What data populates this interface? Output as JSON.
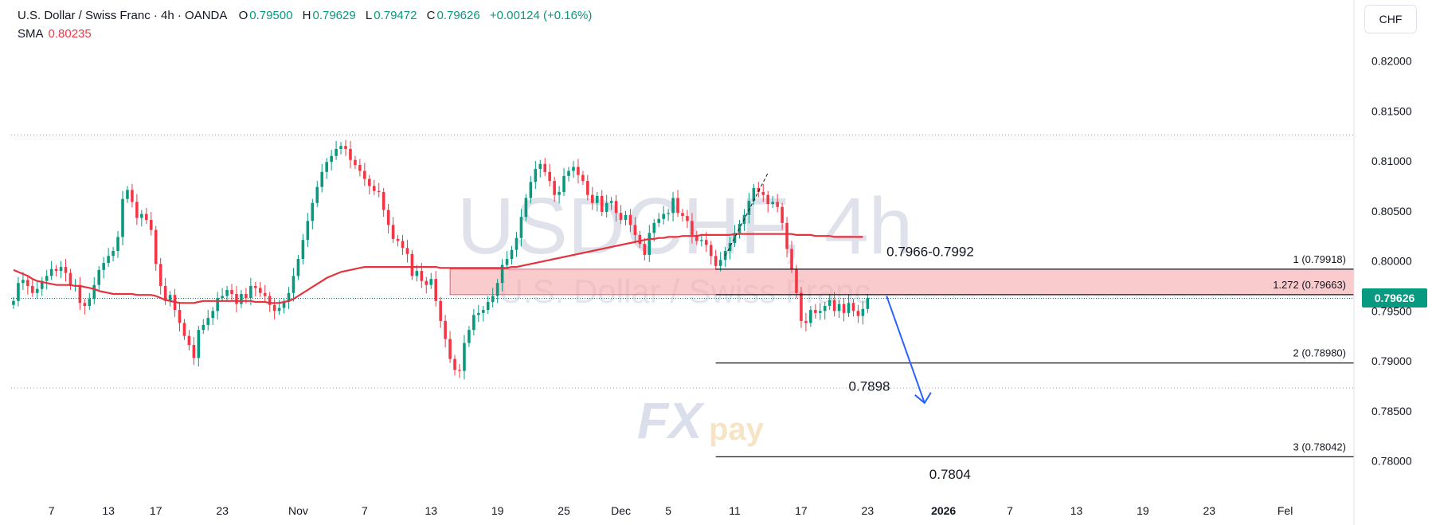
{
  "header": {
    "symbol": "U.S. Dollar / Swiss Franc · 4h · OANDA",
    "open_label": "O",
    "open": "0.79500",
    "high_label": "H",
    "high": "0.79629",
    "low_label": "L",
    "low": "0.79472",
    "close_label": "C",
    "close": "0.79626",
    "change": "+0.00124 (+0.16%)",
    "sma_label": "SMA",
    "sma_value": "0.80235",
    "currency": "CHF"
  },
  "watermark": {
    "ticker": "USDCHF, 4h",
    "name": "U.S. Dollar / Swiss Franc",
    "logo_text": "FXpay"
  },
  "last_price": "0.79626",
  "colors": {
    "up": "#089981",
    "down": "#f23645",
    "sma": "#e5323e",
    "zone": "#f7a8ac",
    "arrow": "#2962ff"
  },
  "chart_data": {
    "type": "line",
    "title": "U.S. Dollar / Swiss Franc · 4h · OANDA",
    "xlabel": "",
    "ylabel": "",
    "ylim": [
      0.7775,
      0.8245
    ],
    "y_ticks": [
      "0.82000",
      "0.81500",
      "0.81000",
      "0.80500",
      "0.80000",
      "0.79500",
      "0.79000",
      "0.78500",
      "0.78000"
    ],
    "y_tick_values": [
      0.82,
      0.815,
      0.81,
      0.805,
      0.8,
      0.795,
      0.79,
      0.785,
      0.78
    ],
    "x_ticks": [
      "7",
      "13",
      "17",
      "23",
      "Nov",
      "7",
      "13",
      "19",
      "25",
      "Dec",
      "5",
      "11",
      "17",
      "23",
      "2026",
      "7",
      "13",
      "19",
      "23",
      "Fel"
    ],
    "x_tick_index": [
      8,
      20,
      30,
      44,
      60,
      74,
      88,
      102,
      116,
      128,
      138,
      152,
      166,
      180,
      196,
      210,
      224,
      238,
      252,
      268
    ],
    "candles_x_range": [
      0,
      283
    ],
    "series": [
      {
        "name": "close",
        "values": [
          0.796,
          0.7978,
          0.7981,
          0.7975,
          0.7968,
          0.7972,
          0.798,
          0.7985,
          0.7992,
          0.799,
          0.7994,
          0.7988,
          0.7975,
          0.7976,
          0.7958,
          0.7955,
          0.7962,
          0.7976,
          0.7991,
          0.7998,
          0.8005,
          0.801,
          0.8024,
          0.8062,
          0.8071,
          0.8059,
          0.8043,
          0.8047,
          0.8041,
          0.8031,
          0.7997,
          0.7975,
          0.796,
          0.7966,
          0.7951,
          0.7938,
          0.7925,
          0.7916,
          0.7903,
          0.7931,
          0.7936,
          0.7943,
          0.795,
          0.7963,
          0.7965,
          0.7971,
          0.7967,
          0.7957,
          0.7967,
          0.7963,
          0.7975,
          0.7973,
          0.7968,
          0.7965,
          0.7956,
          0.795,
          0.7953,
          0.7959,
          0.7968,
          0.7985,
          0.8002,
          0.8021,
          0.804,
          0.8058,
          0.8074,
          0.8089,
          0.8099,
          0.8105,
          0.8112,
          0.8115,
          0.8112,
          0.8101,
          0.8096,
          0.809,
          0.8082,
          0.8075,
          0.807,
          0.8069,
          0.8051,
          0.8036,
          0.8022,
          0.802,
          0.8013,
          0.8007,
          0.7985,
          0.799,
          0.798,
          0.7976,
          0.7982,
          0.796,
          0.794,
          0.7922,
          0.7902,
          0.7891,
          0.789,
          0.7918,
          0.7931,
          0.7946,
          0.7948,
          0.7951,
          0.7959,
          0.7965,
          0.7978,
          0.7996,
          0.8002,
          0.8011,
          0.8023,
          0.8044,
          0.8063,
          0.8079,
          0.8092,
          0.8097,
          0.8089,
          0.808,
          0.8066,
          0.8069,
          0.8085,
          0.809,
          0.8094,
          0.8086,
          0.808,
          0.8066,
          0.8058,
          0.8065,
          0.8049,
          0.8058,
          0.806,
          0.8048,
          0.8041,
          0.8046,
          0.8036,
          0.8026,
          0.8017,
          0.8006,
          0.8028,
          0.8038,
          0.8042,
          0.8047,
          0.8048,
          0.8063,
          0.8048,
          0.8045,
          0.804,
          0.8026,
          0.802,
          0.8021,
          0.8016,
          0.8005,
          0.7995,
          0.8001,
          0.801,
          0.8018,
          0.8028,
          0.8037,
          0.8046,
          0.806,
          0.8073,
          0.8069,
          0.8066,
          0.8057,
          0.8059,
          0.8054,
          0.8038,
          0.8012,
          0.7992,
          0.7968,
          0.794,
          0.7938,
          0.7951,
          0.7948,
          0.795,
          0.7955,
          0.7961,
          0.795,
          0.7957,
          0.7948,
          0.7958,
          0.795,
          0.7945,
          0.7952,
          0.7963
        ],
        "sma": [
          0.7991,
          0.7989,
          0.7987,
          0.7985,
          0.7982,
          0.798,
          0.7979,
          0.7978,
          0.7977,
          0.7976,
          0.7976,
          0.7976,
          0.7976,
          0.7975,
          0.7975,
          0.7974,
          0.7973,
          0.7972,
          0.797,
          0.7969,
          0.7968,
          0.7967,
          0.7967,
          0.7967,
          0.7967,
          0.7967,
          0.7966,
          0.7966,
          0.7966,
          0.7966,
          0.7965,
          0.7963,
          0.7961,
          0.796,
          0.7959,
          0.7958,
          0.7958,
          0.7958,
          0.7958,
          0.7959,
          0.796,
          0.796,
          0.796,
          0.796,
          0.796,
          0.796,
          0.796,
          0.796,
          0.796,
          0.796,
          0.796,
          0.7959,
          0.7959,
          0.7959,
          0.7958,
          0.7958,
          0.7958,
          0.7959,
          0.796,
          0.7962,
          0.7965,
          0.7968,
          0.7971,
          0.7974,
          0.7977,
          0.798,
          0.7983,
          0.7985,
          0.7987,
          0.7989,
          0.799,
          0.7991,
          0.7992,
          0.7993,
          0.7994,
          0.7994,
          0.7994,
          0.7994,
          0.7994,
          0.7994,
          0.7994,
          0.7994,
          0.7994,
          0.7994,
          0.7994,
          0.7994,
          0.7994,
          0.7994,
          0.7994,
          0.7994,
          0.7993,
          0.7993,
          0.7993,
          0.7993,
          0.7993,
          0.7993,
          0.7993,
          0.7993,
          0.7993,
          0.7993,
          0.7993,
          0.7993,
          0.7993,
          0.7993,
          0.7993,
          0.7994,
          0.7994,
          0.7995,
          0.7996,
          0.7997,
          0.7998,
          0.7999,
          0.8,
          0.8001,
          0.8002,
          0.8003,
          0.8004,
          0.8005,
          0.8006,
          0.8007,
          0.8008,
          0.8009,
          0.801,
          0.8011,
          0.8012,
          0.8013,
          0.8014,
          0.8015,
          0.8016,
          0.8017,
          0.8018,
          0.8019,
          0.802,
          0.8021,
          0.8022,
          0.8022,
          0.8023,
          0.8023,
          0.8024,
          0.8024,
          0.8024,
          0.8025,
          0.8025,
          0.8025,
          0.8025,
          0.8026,
          0.8026,
          0.8026,
          0.8026,
          0.8026,
          0.8026,
          0.8026,
          0.8027,
          0.8027,
          0.8027,
          0.8027,
          0.8027,
          0.8027,
          0.8027,
          0.8027,
          0.8027,
          0.8027,
          0.8027,
          0.8027,
          0.8027,
          0.8026,
          0.8026,
          0.8026,
          0.8026,
          0.8025,
          0.8025,
          0.8025,
          0.8025,
          0.8024,
          0.8024,
          0.8024,
          0.8024,
          0.8024,
          0.8024,
          0.8024
        ]
      }
    ],
    "annotations": [
      {
        "type": "hline_dotted",
        "y": 0.8126
      },
      {
        "type": "hline_dotted",
        "y": 0.7873
      },
      {
        "type": "zone",
        "y_top": 0.79918,
        "y_bottom": 0.79663,
        "x_start": 92,
        "x_end": 283
      },
      {
        "type": "fib_level",
        "label": "1 (0.79918)",
        "y": 0.79918
      },
      {
        "type": "fib_level",
        "label": "1.272 (0.79663)",
        "y": 0.79663
      },
      {
        "type": "fib_level",
        "label": "2 (0.78980)",
        "y": 0.7898
      },
      {
        "type": "fib_level",
        "label": "3 (0.78042)",
        "y": 0.78042
      },
      {
        "type": "text",
        "label": "0.7966-0.7992"
      },
      {
        "type": "text",
        "label": "0.7898"
      },
      {
        "type": "text",
        "label": "0.7804"
      }
    ]
  }
}
